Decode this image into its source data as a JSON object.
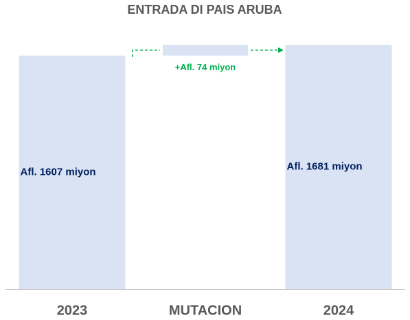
{
  "chart_data": {
    "type": "waterfall",
    "title": "ENTRADA DI PAIS ARUBA",
    "categories": [
      "2023",
      "MUTACION",
      "2024"
    ],
    "values": [
      1607,
      74,
      1681
    ],
    "value_labels": [
      "Afl. 1607 miyon",
      "+Afl. 74 miyon",
      "Afl. 1681 miyon"
    ],
    "color": "#dae3f3",
    "arrow_color": "#00b050",
    "ylim": [
      0,
      1800
    ]
  }
}
